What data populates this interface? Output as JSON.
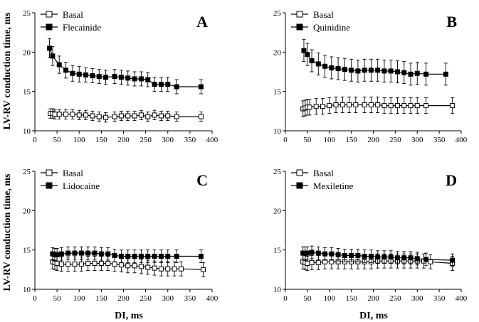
{
  "figure": {
    "ylabel": "LV-RV conduction time, ms",
    "xlabel": "DI, ms"
  },
  "chart_data": [
    {
      "type": "line",
      "panel": "A",
      "xlim": [
        0,
        400
      ],
      "ylim": [
        10,
        25
      ],
      "xticks": [
        0,
        50,
        100,
        150,
        200,
        250,
        300,
        350,
        400
      ],
      "yticks": [
        10,
        15,
        20,
        25
      ],
      "legend_position": "top-left",
      "series": [
        {
          "name": "Basal",
          "marker": "open-square",
          "x": [
            35,
            40,
            45,
            55,
            70,
            85,
            100,
            115,
            130,
            145,
            160,
            180,
            195,
            210,
            225,
            240,
            255,
            270,
            285,
            300,
            320,
            375
          ],
          "y": [
            12.2,
            12.2,
            12.1,
            12.1,
            12.1,
            12.1,
            12.0,
            12.0,
            11.9,
            11.8,
            11.7,
            11.8,
            11.9,
            11.9,
            11.9,
            12.0,
            11.8,
            12.0,
            11.9,
            11.9,
            11.8,
            11.8
          ],
          "err": [
            0.6,
            0.6,
            0.6,
            0.6,
            0.6,
            0.6,
            0.6,
            0.6,
            0.6,
            0.6,
            0.6,
            0.6,
            0.6,
            0.6,
            0.6,
            0.6,
            0.6,
            0.6,
            0.6,
            0.6,
            0.6,
            0.6
          ]
        },
        {
          "name": "Flecainide",
          "marker": "filled-square",
          "x": [
            33,
            40,
            55,
            70,
            85,
            100,
            115,
            130,
            145,
            160,
            180,
            195,
            210,
            225,
            240,
            255,
            270,
            285,
            300,
            320,
            375
          ],
          "y": [
            20.5,
            19.5,
            18.4,
            17.7,
            17.3,
            17.2,
            17.1,
            17.0,
            16.9,
            16.8,
            16.9,
            16.8,
            16.7,
            16.6,
            16.6,
            16.5,
            15.9,
            15.9,
            15.9,
            15.6,
            15.6
          ],
          "err": [
            1.2,
            1.2,
            1.1,
            1.0,
            1.0,
            1.0,
            0.9,
            0.9,
            0.9,
            0.9,
            0.9,
            0.9,
            0.9,
            0.9,
            0.9,
            0.9,
            0.9,
            0.9,
            0.9,
            0.9,
            0.9
          ]
        }
      ]
    },
    {
      "type": "line",
      "panel": "B",
      "xlim": [
        0,
        400
      ],
      "ylim": [
        10,
        25
      ],
      "xticks": [
        0,
        50,
        100,
        150,
        200,
        250,
        300,
        350,
        400
      ],
      "yticks": [
        10,
        15,
        20,
        25
      ],
      "legend_position": "top-left",
      "series": [
        {
          "name": "Basal",
          "marker": "open-square",
          "x": [
            40,
            45,
            50,
            55,
            70,
            85,
            100,
            115,
            130,
            145,
            160,
            180,
            195,
            210,
            225,
            240,
            255,
            270,
            285,
            300,
            320,
            380
          ],
          "y": [
            12.8,
            12.9,
            13.0,
            13.0,
            13.1,
            13.1,
            13.2,
            13.3,
            13.3,
            13.3,
            13.3,
            13.3,
            13.3,
            13.3,
            13.2,
            13.2,
            13.2,
            13.2,
            13.2,
            13.2,
            13.2,
            13.2
          ],
          "err": [
            1.0,
            1.0,
            1.0,
            1.0,
            1.0,
            1.0,
            1.0,
            1.0,
            1.0,
            1.0,
            1.0,
            1.0,
            1.0,
            1.0,
            1.0,
            1.0,
            1.0,
            1.0,
            1.0,
            1.0,
            1.0,
            1.0
          ]
        },
        {
          "name": "Quinidine",
          "marker": "filled-square",
          "x": [
            42,
            50,
            60,
            75,
            90,
            105,
            120,
            135,
            150,
            165,
            180,
            195,
            210,
            225,
            240,
            255,
            270,
            285,
            300,
            320,
            365
          ],
          "y": [
            20.2,
            19.7,
            18.9,
            18.5,
            18.2,
            18.0,
            17.9,
            17.8,
            17.7,
            17.6,
            17.7,
            17.7,
            17.7,
            17.6,
            17.6,
            17.5,
            17.4,
            17.2,
            17.3,
            17.2,
            17.2
          ],
          "err": [
            1.4,
            1.4,
            1.4,
            1.4,
            1.4,
            1.4,
            1.4,
            1.4,
            1.4,
            1.4,
            1.4,
            1.4,
            1.4,
            1.4,
            1.4,
            1.4,
            1.4,
            1.4,
            1.4,
            1.4,
            1.4
          ]
        }
      ]
    },
    {
      "type": "line",
      "panel": "C",
      "xlim": [
        0,
        400
      ],
      "ylim": [
        10,
        25
      ],
      "xticks": [
        0,
        50,
        100,
        150,
        200,
        250,
        300,
        350,
        400
      ],
      "yticks": [
        10,
        15,
        20,
        25
      ],
      "legend_position": "top-left",
      "series": [
        {
          "name": "Basal",
          "marker": "open-square",
          "x": [
            40,
            45,
            50,
            60,
            75,
            90,
            105,
            120,
            135,
            150,
            165,
            180,
            195,
            210,
            225,
            240,
            255,
            270,
            285,
            300,
            315,
            330,
            380
          ],
          "y": [
            13.5,
            13.4,
            13.3,
            13.2,
            13.2,
            13.2,
            13.2,
            13.3,
            13.3,
            13.3,
            13.3,
            13.2,
            13.1,
            13.0,
            13.0,
            12.9,
            12.8,
            12.7,
            12.6,
            12.6,
            12.6,
            12.6,
            12.5
          ],
          "err": [
            0.9,
            0.9,
            0.9,
            0.9,
            0.9,
            0.9,
            0.9,
            0.9,
            0.9,
            0.9,
            0.9,
            0.9,
            0.9,
            0.9,
            0.9,
            0.9,
            0.9,
            0.9,
            0.9,
            0.9,
            0.9,
            0.9,
            0.9
          ]
        },
        {
          "name": "Lidocaine",
          "marker": "filled-square",
          "x": [
            40,
            45,
            50,
            60,
            75,
            90,
            105,
            120,
            135,
            150,
            165,
            180,
            195,
            210,
            225,
            240,
            255,
            270,
            285,
            300,
            320,
            375
          ],
          "y": [
            14.5,
            14.4,
            14.4,
            14.5,
            14.6,
            14.6,
            14.6,
            14.6,
            14.6,
            14.5,
            14.5,
            14.3,
            14.2,
            14.2,
            14.2,
            14.2,
            14.2,
            14.2,
            14.2,
            14.2,
            14.2,
            14.2
          ],
          "err": [
            0.8,
            0.8,
            0.8,
            0.8,
            0.8,
            0.8,
            0.8,
            0.8,
            0.8,
            0.8,
            0.8,
            0.8,
            0.8,
            0.8,
            0.8,
            0.8,
            0.8,
            0.8,
            0.8,
            0.8,
            0.8,
            0.8
          ]
        }
      ]
    },
    {
      "type": "line",
      "panel": "D",
      "xlim": [
        0,
        400
      ],
      "ylim": [
        10,
        25
      ],
      "xticks": [
        0,
        50,
        100,
        150,
        200,
        250,
        300,
        350,
        400
      ],
      "yticks": [
        10,
        15,
        20,
        25
      ],
      "legend_position": "top-left",
      "series": [
        {
          "name": "Basal",
          "marker": "open-square",
          "x": [
            40,
            45,
            50,
            60,
            75,
            90,
            105,
            120,
            135,
            150,
            165,
            180,
            195,
            210,
            225,
            240,
            255,
            270,
            285,
            300,
            315,
            330,
            380
          ],
          "y": [
            13.5,
            13.4,
            13.3,
            13.4,
            13.4,
            13.5,
            13.5,
            13.5,
            13.5,
            13.5,
            13.5,
            13.5,
            13.5,
            13.6,
            13.6,
            13.6,
            13.6,
            13.6,
            13.6,
            13.6,
            13.6,
            13.5,
            13.3
          ],
          "err": [
            0.9,
            0.9,
            0.9,
            0.9,
            0.9,
            0.9,
            0.9,
            0.9,
            0.9,
            0.9,
            0.9,
            0.9,
            0.9,
            0.9,
            0.9,
            0.9,
            0.9,
            0.9,
            0.9,
            0.9,
            0.9,
            0.9,
            0.9
          ]
        },
        {
          "name": "Mexiletine",
          "marker": "filled-square",
          "x": [
            40,
            45,
            50,
            60,
            75,
            90,
            105,
            120,
            135,
            150,
            165,
            180,
            195,
            210,
            225,
            240,
            255,
            270,
            285,
            300,
            320,
            380
          ],
          "y": [
            14.6,
            14.6,
            14.6,
            14.7,
            14.6,
            14.5,
            14.5,
            14.4,
            14.3,
            14.3,
            14.3,
            14.2,
            14.2,
            14.1,
            14.1,
            14.1,
            14.0,
            14.0,
            14.0,
            13.9,
            13.8,
            13.7
          ],
          "err": [
            0.8,
            0.8,
            0.8,
            0.8,
            0.8,
            0.8,
            0.8,
            0.8,
            0.8,
            0.8,
            0.8,
            0.8,
            0.8,
            0.8,
            0.8,
            0.8,
            0.8,
            0.8,
            0.8,
            0.8,
            0.8,
            0.8
          ]
        }
      ]
    }
  ]
}
